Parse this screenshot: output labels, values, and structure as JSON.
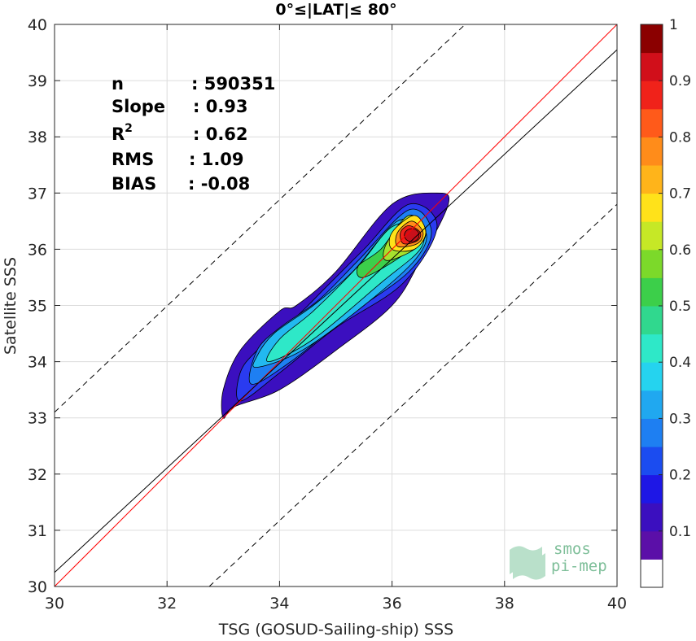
{
  "chart_data": {
    "type": "heatmap",
    "title": "0°≤|LAT|≤ 80°",
    "xlabel": "TSG (GOSUD-Sailing-ship) SSS",
    "ylabel": "Satellite SSS",
    "xlim": [
      30,
      40
    ],
    "ylim": [
      30,
      40
    ],
    "xticks": [
      "30",
      "32",
      "34",
      "36",
      "38",
      "40"
    ],
    "yticks": [
      "30",
      "31",
      "32",
      "33",
      "34",
      "35",
      "36",
      "37",
      "38",
      "39",
      "40"
    ],
    "grid": true,
    "stats": [
      {
        "label": "n",
        "value": ": 590351"
      },
      {
        "label": "Slope",
        "value": ": 0.93"
      },
      {
        "label": "R",
        "sup": "2",
        "value": ": 0.62"
      },
      {
        "label": "RMS",
        "value": ": 1.09"
      },
      {
        "label": "BIAS",
        "value": ": -0.08"
      }
    ],
    "lines": [
      {
        "role": "one-to-one",
        "color": "#ff0000",
        "style": "solid",
        "points": [
          [
            30,
            30
          ],
          [
            40,
            40
          ]
        ]
      },
      {
        "role": "regression",
        "color": "#000000",
        "style": "solid",
        "points": [
          [
            30,
            30.25
          ],
          [
            40,
            39.55
          ]
        ]
      },
      {
        "role": "upper-bound",
        "color": "#000000",
        "style": "dashed",
        "points": [
          [
            30,
            33.1
          ],
          [
            37.3,
            40
          ]
        ]
      },
      {
        "role": "lower-bound",
        "color": "#000000",
        "style": "dashed",
        "points": [
          [
            32.75,
            30
          ],
          [
            40,
            36.8
          ]
        ]
      }
    ],
    "density_peak": {
      "x": 36.35,
      "y": 36.25,
      "value": 1.0
    },
    "contour_levels": [
      {
        "level": 0.05,
        "color": "#3b0fbf",
        "points": [
          [
            33.0,
            33.0
          ],
          [
            33.2,
            33.2
          ],
          [
            34.0,
            33.5
          ],
          [
            35.0,
            34.2
          ],
          [
            36.0,
            35.0
          ],
          [
            36.5,
            35.8
          ],
          [
            37.0,
            36.8
          ],
          [
            36.8,
            37.0
          ],
          [
            36.0,
            36.8
          ],
          [
            35.0,
            35.6
          ],
          [
            34.3,
            35.0
          ],
          [
            34.0,
            34.9
          ],
          [
            33.3,
            34.2
          ],
          [
            33.0,
            33.5
          ]
        ]
      },
      {
        "level": 0.12,
        "color": "#2a3bf0",
        "points": [
          [
            33.3,
            33.3
          ],
          [
            34.0,
            33.8
          ],
          [
            35.0,
            34.6
          ],
          [
            36.2,
            35.4
          ],
          [
            36.8,
            36.4
          ],
          [
            36.3,
            36.8
          ],
          [
            35.5,
            36.0
          ],
          [
            34.8,
            35.3
          ],
          [
            34.3,
            34.8
          ],
          [
            33.6,
            34.2
          ],
          [
            33.3,
            33.8
          ]
        ]
      },
      {
        "level": 0.2,
        "color": "#1e7ff2",
        "points": [
          [
            33.5,
            33.6
          ],
          [
            34.2,
            34.0
          ],
          [
            35.2,
            34.8
          ],
          [
            36.3,
            35.6
          ],
          [
            36.7,
            36.3
          ],
          [
            36.3,
            36.7
          ],
          [
            35.4,
            35.8
          ],
          [
            34.7,
            35.1
          ],
          [
            34.0,
            34.6
          ],
          [
            33.6,
            34.2
          ]
        ]
      },
      {
        "level": 0.3,
        "color": "#22b9f0",
        "points": [
          [
            33.6,
            33.9
          ],
          [
            34.4,
            34.2
          ],
          [
            35.5,
            35.0
          ],
          [
            36.4,
            35.8
          ],
          [
            36.6,
            36.3
          ],
          [
            36.1,
            36.5
          ],
          [
            35.3,
            35.6
          ],
          [
            34.6,
            35.0
          ],
          [
            33.9,
            34.5
          ],
          [
            33.6,
            34.1
          ]
        ]
      },
      {
        "level": 0.4,
        "color": "#2ee8c8",
        "points": [
          [
            33.8,
            34.0
          ],
          [
            34.6,
            34.4
          ],
          [
            35.8,
            35.4
          ],
          [
            36.5,
            36.0
          ],
          [
            36.5,
            36.4
          ],
          [
            36.0,
            36.4
          ],
          [
            35.4,
            35.7
          ],
          [
            34.6,
            34.9
          ],
          [
            34.0,
            34.4
          ]
        ]
      },
      {
        "level": 0.5,
        "color": "#3ccf4a",
        "points": [
          [
            35.5,
            35.5
          ],
          [
            36.2,
            35.9
          ],
          [
            36.6,
            36.3
          ],
          [
            36.3,
            36.6
          ],
          [
            35.8,
            36.0
          ],
          [
            35.4,
            35.7
          ]
        ]
      },
      {
        "level": 0.6,
        "color": "#a6e22e",
        "points": [
          [
            35.9,
            35.8
          ],
          [
            36.4,
            36.0
          ],
          [
            36.6,
            36.3
          ],
          [
            36.3,
            36.6
          ],
          [
            35.9,
            36.1
          ]
        ]
      },
      {
        "level": 0.7,
        "color": "#ffe21a",
        "points": [
          [
            36.0,
            36.0
          ],
          [
            36.4,
            36.0
          ],
          [
            36.6,
            36.3
          ],
          [
            36.4,
            36.6
          ],
          [
            36.0,
            36.3
          ]
        ]
      },
      {
        "level": 0.8,
        "color": "#ff8c1a",
        "points": [
          [
            36.1,
            36.05
          ],
          [
            36.45,
            36.1
          ],
          [
            36.55,
            36.3
          ],
          [
            36.35,
            36.5
          ],
          [
            36.1,
            36.3
          ]
        ]
      },
      {
        "level": 0.9,
        "color": "#f0221a",
        "points": [
          [
            36.2,
            36.1
          ],
          [
            36.45,
            36.15
          ],
          [
            36.5,
            36.3
          ],
          [
            36.3,
            36.42
          ],
          [
            36.15,
            36.3
          ]
        ]
      }
    ],
    "colorbar": {
      "range": [
        0,
        1
      ],
      "ticks": [
        "0.1",
        "0.2",
        "0.3",
        "0.4",
        "0.5",
        "0.6",
        "0.7",
        "0.8",
        "0.9",
        "1"
      ],
      "colors": [
        "#ffffff",
        "#5b0fa8",
        "#3b0fbf",
        "#1e17e6",
        "#1b4cf0",
        "#1e7ff2",
        "#20a8f0",
        "#25d3ef",
        "#2ee8c8",
        "#30d88e",
        "#3ccf4a",
        "#7cd92a",
        "#c6e826",
        "#ffe21a",
        "#ffb41a",
        "#ff8c1a",
        "#ff5a1a",
        "#f0221a",
        "#d10f1a",
        "#8b0000"
      ]
    },
    "logo_text": [
      "smos",
      "pi-mep"
    ]
  }
}
